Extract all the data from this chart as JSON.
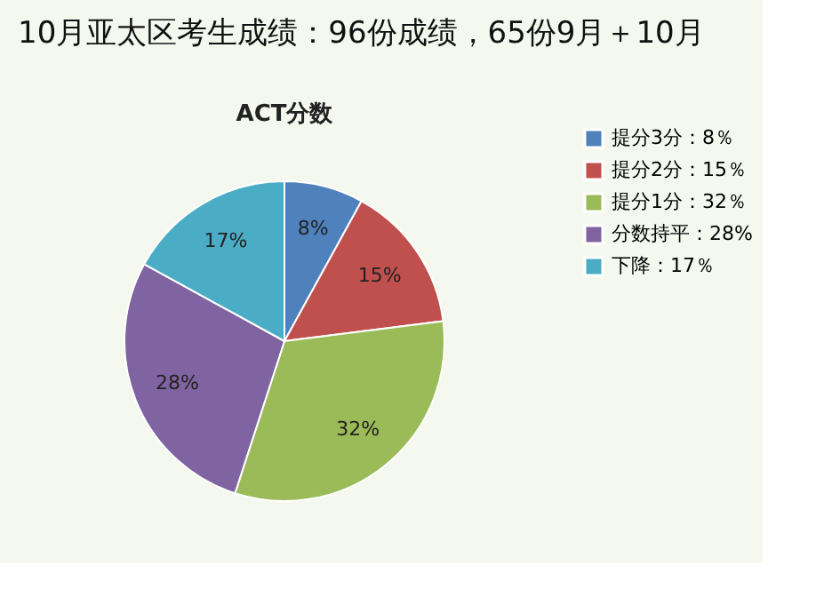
{
  "chart_data": {
    "type": "pie",
    "title": "10月亚太区考生成绩：96份成绩，65份9月＋10月",
    "subtitle": "ACT分数",
    "categories": [
      "提分3分：8％",
      "提分2分：15％",
      "提分1分：32％",
      "分数持平：28%",
      "下降：17％"
    ],
    "values": [
      8,
      15,
      32,
      28,
      17
    ],
    "colors": [
      "#4f81bd",
      "#c0504d",
      "#9bbb59",
      "#8064a2",
      "#4bacc6"
    ],
    "value_labels": [
      "8%",
      "15%",
      "32%",
      "28%",
      "17%"
    ],
    "legend": "right"
  }
}
